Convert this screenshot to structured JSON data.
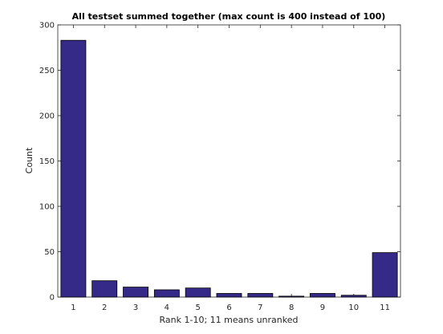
{
  "chart_data": {
    "type": "bar",
    "title": "All testset summed together (max count is 400 instead of 100)",
    "xlabel": "Rank 1-10; 11 means unranked",
    "ylabel": "Count",
    "categories": [
      "1",
      "2",
      "3",
      "4",
      "5",
      "6",
      "7",
      "8",
      "9",
      "10",
      "11"
    ],
    "values": [
      283,
      18,
      11,
      8,
      10,
      4,
      4,
      1,
      4,
      2,
      49
    ],
    "ylim": [
      0,
      300
    ],
    "yticks": [
      0,
      50,
      100,
      150,
      200,
      250,
      300
    ],
    "grid": false,
    "legend": "none",
    "bar_color": "#352a87"
  }
}
